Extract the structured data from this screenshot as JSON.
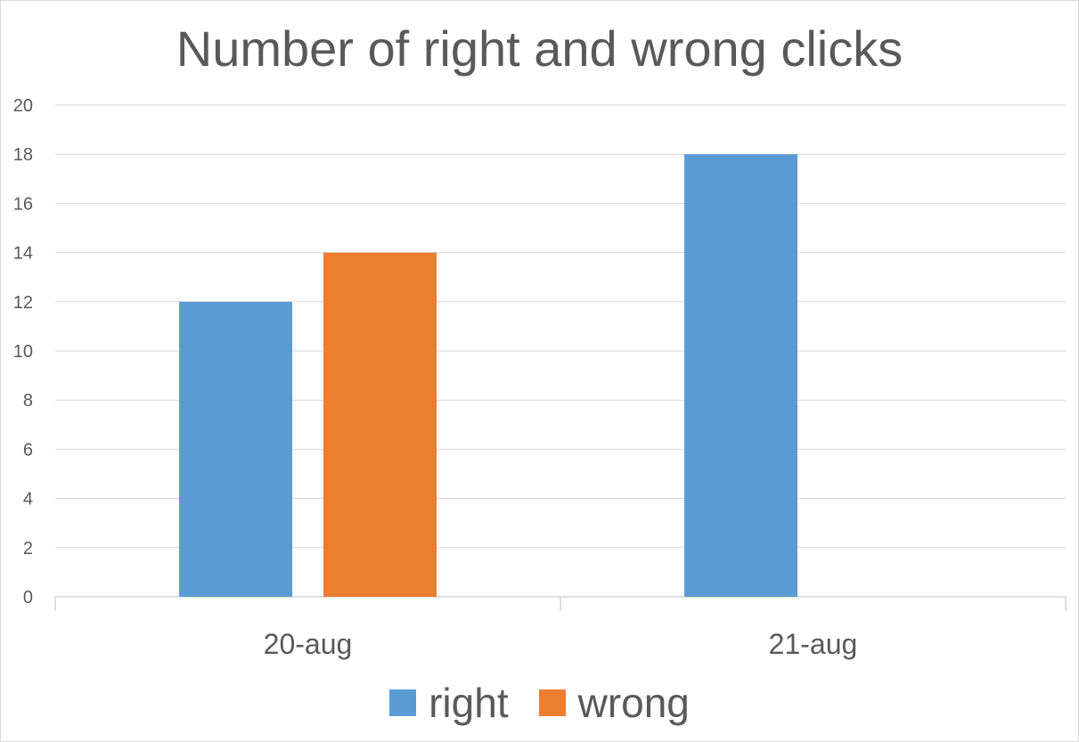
{
  "chart_data": {
    "type": "bar",
    "title": "Number of right and wrong clicks",
    "categories": [
      "20-aug",
      "21-aug"
    ],
    "series": [
      {
        "name": "right",
        "values": [
          12,
          18
        ],
        "color": "#5b9bd5"
      },
      {
        "name": "wrong",
        "values": [
          14,
          null
        ],
        "color": "#ed7d31"
      }
    ],
    "xlabel": "",
    "ylabel": "",
    "ylim": [
      0,
      20
    ],
    "yticks": [
      0,
      2,
      4,
      6,
      8,
      10,
      12,
      14,
      16,
      18,
      20
    ],
    "grid": true,
    "legend_position": "bottom"
  }
}
